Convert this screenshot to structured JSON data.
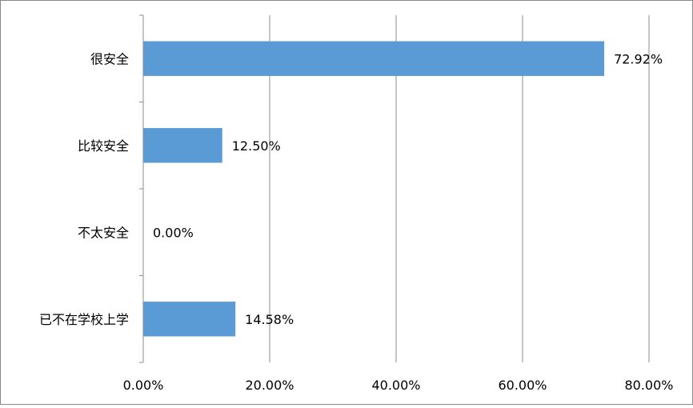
{
  "chart_data": {
    "type": "bar",
    "orientation": "horizontal",
    "title": "",
    "xlabel": "",
    "ylabel": "",
    "categories": [
      "很安全",
      "比较安全",
      "不太安全",
      "已不在学校上学"
    ],
    "values": [
      72.92,
      12.5,
      0.0,
      14.58
    ],
    "data_labels": [
      "72.92%",
      "12.50%",
      "0.00%",
      "14.58%"
    ],
    "xlim": [
      0,
      80
    ],
    "xticks": [
      0,
      20,
      40,
      60,
      80
    ],
    "xtick_labels": [
      "0.00%",
      "20.00%",
      "40.00%",
      "60.00%",
      "80.00%"
    ],
    "grid": "vertical",
    "legend": "none",
    "bar_color": "#5b9bd5",
    "grid_color": "#8c8c8c"
  }
}
